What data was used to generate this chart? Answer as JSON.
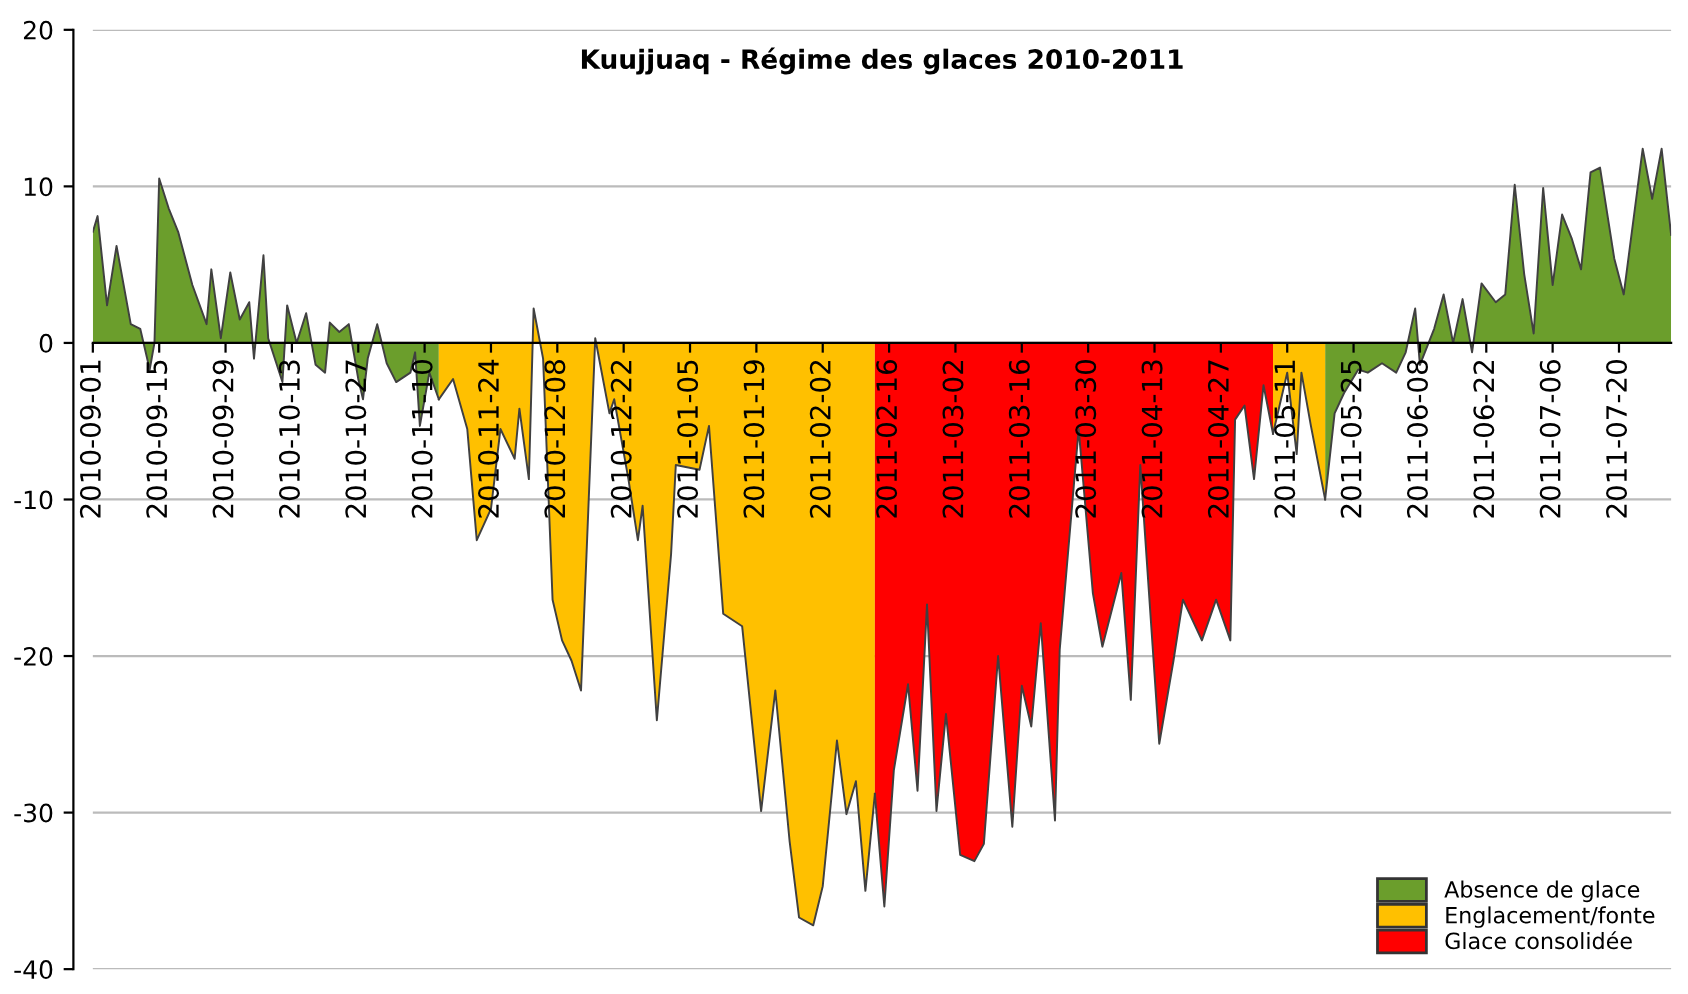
{
  "chart_data": {
    "type": "area",
    "title": "Kuujjuaq - Régime des glaces 2010-2011",
    "xlim": [
      "2010-09-01",
      "2011-07-31"
    ],
    "xticks": [
      "2010-09-01",
      "2010-09-15",
      "2010-09-29",
      "2010-10-13",
      "2010-10-27",
      "2010-11-10",
      "2010-11-24",
      "2010-12-08",
      "2010-12-22",
      "2011-01-05",
      "2011-01-19",
      "2011-02-02",
      "2011-02-16",
      "2011-03-02",
      "2011-03-16",
      "2011-03-30",
      "2011-04-13",
      "2011-04-27",
      "2011-05-11",
      "2011-05-25",
      "2011-06-08",
      "2011-06-22",
      "2011-07-06",
      "2011-07-20"
    ],
    "ylim": [
      -40,
      20
    ],
    "yticks": [
      -40,
      -30,
      -20,
      -10,
      0,
      10,
      20
    ],
    "grid": "y",
    "legend": "bottom right",
    "series": [
      {
        "name": "Absence de glace",
        "color": "#6b9e2c",
        "x": [
          "2010-09-01",
          "2010-09-02",
          "2010-09-04",
          "2010-09-06",
          "2010-09-09",
          "2010-09-11",
          "2010-09-13",
          "2010-09-14",
          "2010-09-15",
          "2010-09-17",
          "2010-09-19",
          "2010-09-22",
          "2010-09-25",
          "2010-09-26",
          "2010-09-28",
          "2010-09-30",
          "2010-10-02",
          "2010-10-04",
          "2010-10-05",
          "2010-10-07",
          "2010-10-08",
          "2010-10-11",
          "2010-10-12",
          "2010-10-14",
          "2010-10-16",
          "2010-10-18",
          "2010-10-20",
          "2010-10-21",
          "2010-10-23",
          "2010-10-25",
          "2010-10-27",
          "2010-10-28",
          "2010-10-29",
          "2010-10-31",
          "2010-11-02",
          "2010-11-04",
          "2010-11-07",
          "2010-11-08",
          "2010-11-09",
          "2010-11-11",
          "2010-11-13",
          "2011-01-01",
          "2011-05-19",
          "2011-05-21",
          "2011-05-23",
          "2011-05-26",
          "2011-05-28",
          "2011-05-31",
          "2011-06-03",
          "2011-06-05",
          "2011-06-07",
          "2011-06-08",
          "2011-06-11",
          "2011-06-13",
          "2011-06-15",
          "2011-06-17",
          "2011-06-19",
          "2011-06-21",
          "2011-06-24",
          "2011-06-26",
          "2011-06-28",
          "2011-06-30",
          "2011-07-02",
          "2011-07-04",
          "2011-07-06",
          "2011-07-08",
          "2011-07-10",
          "2011-07-12",
          "2011-07-14",
          "2011-07-16",
          "2011-07-19",
          "2011-07-21",
          "2011-07-25",
          "2011-07-27",
          "2011-07-29",
          "2011-07-31"
        ],
        "values": [
          7.1,
          8.1,
          2.4,
          6.2,
          1.2,
          0.9,
          -1.7,
          0,
          10.5,
          8.6,
          7.1,
          3.7,
          1.2,
          4.7,
          0.3,
          4.5,
          1.5,
          2.6,
          -1.0,
          5.6,
          0.3,
          -2.5,
          2.4,
          0,
          1.9,
          -1.4,
          -1.9,
          1.3,
          0.7,
          1.2,
          -2.3,
          -3.6,
          -1.0,
          1.2,
          -1.3,
          -2.5,
          -1.9,
          -0.6,
          -5.3,
          -1.9,
          -3.6,
          null,
          -10,
          -4.5,
          -3.2,
          -1.7,
          -1.9,
          -1.3,
          -1.9,
          -0.6,
          2.2,
          -1.4,
          0.9,
          3.1,
          0,
          2.8,
          -0.6,
          3.8,
          2.6,
          3.1,
          10.1,
          4.4,
          0.6,
          9.9,
          3.7,
          8.2,
          6.7,
          4.7,
          10.9,
          11.2,
          5.4,
          3.1,
          12.4,
          9.2,
          12.4,
          6.9
        ]
      },
      {
        "name": "Englacement/fonte",
        "color": "#ffc000",
        "x": [
          "2010-11-13",
          "2010-11-16",
          "2010-11-19",
          "2010-11-21",
          "2010-11-24",
          "2010-11-26",
          "2010-11-29",
          "2010-11-30",
          "2010-12-02",
          "2010-12-03",
          "2010-12-05",
          "2010-12-07",
          "2010-12-09",
          "2010-12-11",
          "2010-12-13",
          "2010-12-16",
          "2010-12-19",
          "2010-12-20",
          "2010-12-23",
          "2010-12-25",
          "2010-12-26",
          "2010-12-29",
          "2011-01-01",
          "2011-01-02",
          "2011-01-07",
          "2011-01-09",
          "2011-01-12",
          "2011-01-16",
          "2011-01-20",
          "2011-01-23",
          "2011-01-26",
          "2011-01-28",
          "2011-01-31",
          "2011-02-02",
          "2011-02-05",
          "2011-02-07",
          "2011-02-09",
          "2011-02-11",
          "2011-02-13",
          "2011-04-01",
          "2011-05-08",
          "2011-05-11",
          "2011-05-13",
          "2011-05-14",
          "2011-05-16",
          "2011-05-19"
        ],
        "values": [
          -3.6,
          -2.3,
          -5.5,
          -12.6,
          -10.6,
          -5.5,
          -7.4,
          -4.2,
          -8.7,
          2.2,
          -1.0,
          -16.4,
          -19,
          -20.3,
          -22.2,
          0.3,
          -4.5,
          -3.6,
          -8.7,
          -12.6,
          -10.4,
          -24.1,
          -13.5,
          -7.8,
          -8.1,
          -5.3,
          -17.3,
          -18.1,
          -29.9,
          -22.2,
          -31.8,
          -36.7,
          -37.2,
          -34.7,
          -25.4,
          -30.1,
          -28,
          -35,
          -28.8,
          null,
          -5.8,
          -1.9,
          -7.1,
          -1.9,
          -5.3,
          -10
        ]
      },
      {
        "name": "Glace consolidée",
        "color": "#ff0000",
        "x": [
          "2011-02-13",
          "2011-02-15",
          "2011-02-17",
          "2011-02-20",
          "2011-02-22",
          "2011-02-24",
          "2011-02-26",
          "2011-02-28",
          "2011-03-03",
          "2011-03-06",
          "2011-03-08",
          "2011-03-11",
          "2011-03-14",
          "2011-03-16",
          "2011-03-18",
          "2011-03-20",
          "2011-03-23",
          "2011-03-24",
          "2011-03-28",
          "2011-03-31",
          "2011-04-02",
          "2011-04-06",
          "2011-04-08",
          "2011-04-10",
          "2011-04-14",
          "2011-04-17",
          "2011-04-19",
          "2011-04-23",
          "2011-04-26",
          "2011-04-29",
          "2011-04-30",
          "2011-05-02",
          "2011-05-04",
          "2011-05-06",
          "2011-05-08"
        ],
        "values": [
          -28.8,
          -36,
          -27.3,
          -21.8,
          -28.6,
          -16.7,
          -29.9,
          -23.7,
          -32.7,
          -33.1,
          -32,
          -20,
          -30.9,
          -21.9,
          -24.5,
          -17.9,
          -30.5,
          -19.6,
          -5.5,
          -16,
          -19.4,
          -14.7,
          -22.8,
          -7.8,
          -25.6,
          -20.3,
          -16.4,
          -19,
          -16.4,
          -19,
          -4.9,
          -4.0,
          -8.7,
          -2.7,
          -5.8
        ]
      }
    ]
  }
}
